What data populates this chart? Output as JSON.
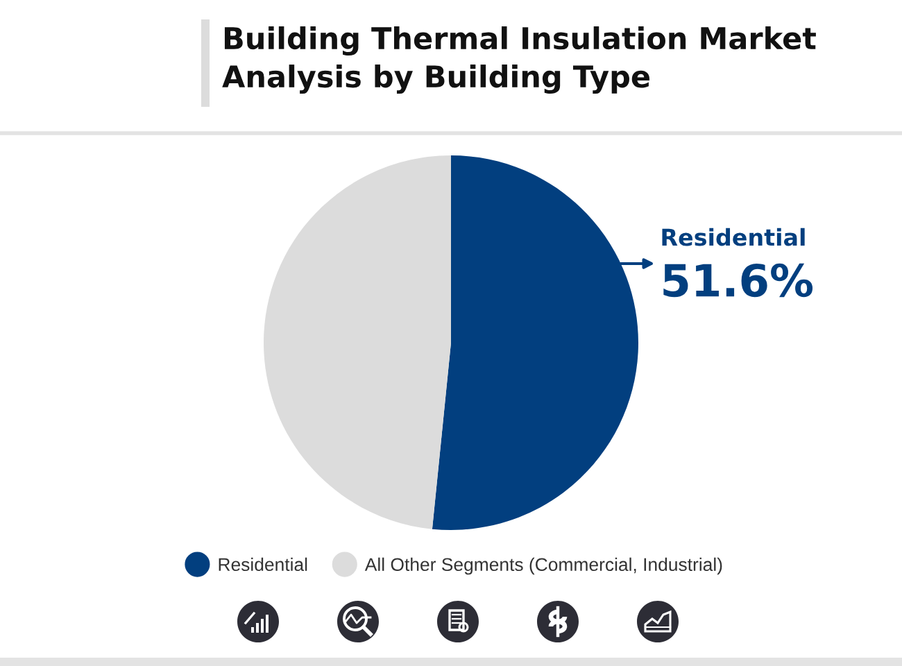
{
  "chart_data": {
    "type": "pie",
    "title": "Building Thermal Insulation Market Analysis by Building Type",
    "categories": [
      "Residential",
      "All Other Segments (Commercial, Industrial)"
    ],
    "values": [
      51.6,
      48.4
    ],
    "colors": [
      "#023f7f",
      "#dcdcdc"
    ],
    "value_labels": [
      "51.6%",
      null
    ],
    "legend": "bottom"
  }
}
